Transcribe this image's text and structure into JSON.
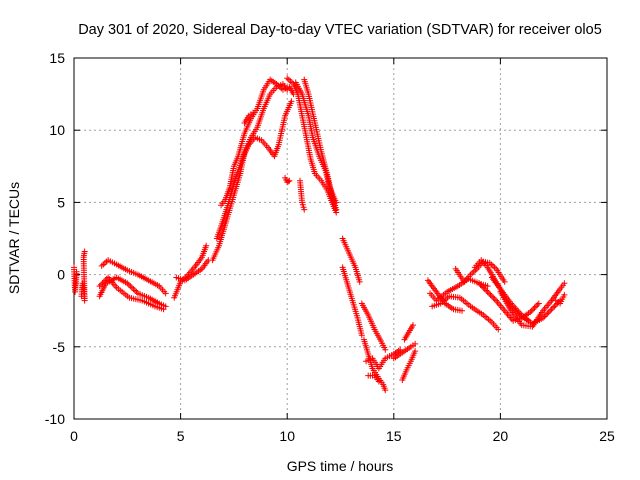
{
  "chart_data": {
    "type": "scatter",
    "title": "Day 301 of 2020, Sidereal Day-to-day VTEC variation (SDTVAR) for receiver olo5",
    "xlabel": "GPS time / hours",
    "ylabel": "SDTVAR / TECUs",
    "xlim": [
      0,
      25
    ],
    "ylim": [
      -10,
      15
    ],
    "xticks": [
      0,
      5,
      10,
      15,
      20,
      25
    ],
    "yticks": [
      -10,
      -5,
      0,
      5,
      10,
      15
    ],
    "grid": true,
    "marker": "+",
    "series": [
      {
        "name": "SDTVAR",
        "color": "#ff0000",
        "tracks": [
          [
            [
              0.0,
              0.5
            ],
            [
              0.05,
              -1.2
            ],
            [
              0.1,
              -0.5
            ],
            [
              0.12,
              0.2
            ]
          ],
          [
            [
              0.35,
              -1.5
            ],
            [
              0.4,
              -0.6
            ],
            [
              0.45,
              -1.0
            ],
            [
              0.5,
              -1.8
            ],
            [
              0.45,
              1.2
            ],
            [
              0.5,
              1.6
            ]
          ],
          [
            [
              1.2,
              -1.5
            ],
            [
              1.5,
              -0.6
            ],
            [
              2.0,
              -0.2
            ],
            [
              2.5,
              -0.6
            ],
            [
              3.0,
              -1.3
            ],
            [
              3.5,
              -1.6
            ],
            [
              4.0,
              -2.0
            ],
            [
              4.3,
              -2.2
            ]
          ],
          [
            [
              1.3,
              0.6
            ],
            [
              1.6,
              1.0
            ],
            [
              2.0,
              0.7
            ],
            [
              2.5,
              0.3
            ],
            [
              3.0,
              0.0
            ],
            [
              3.5,
              -0.4
            ],
            [
              4.0,
              -0.8
            ],
            [
              4.3,
              -1.3
            ]
          ],
          [
            [
              1.2,
              -0.8
            ],
            [
              1.6,
              -0.2
            ],
            [
              2.0,
              -0.9
            ],
            [
              2.6,
              -1.6
            ],
            [
              3.2,
              -1.8
            ],
            [
              3.8,
              -2.2
            ],
            [
              4.2,
              -2.4
            ]
          ],
          [
            [
              4.7,
              -1.6
            ],
            [
              5.0,
              -0.5
            ],
            [
              5.3,
              -0.1
            ],
            [
              5.7,
              0.6
            ],
            [
              6.0,
              1.2
            ],
            [
              6.2,
              2.0
            ]
          ],
          [
            [
              4.8,
              -0.2
            ],
            [
              5.2,
              -0.4
            ],
            [
              5.6,
              0.0
            ],
            [
              6.0,
              0.4
            ],
            [
              6.3,
              1.0
            ]
          ],
          [
            [
              6.5,
              1.0
            ],
            [
              6.8,
              2.0
            ],
            [
              7.0,
              3.0
            ],
            [
              7.2,
              4.0
            ],
            [
              7.5,
              5.5
            ],
            [
              7.8,
              7.0
            ],
            [
              8.0,
              8.5
            ],
            [
              8.3,
              9.5
            ],
            [
              8.6,
              10.2
            ],
            [
              8.9,
              11.5
            ],
            [
              9.2,
              12.5
            ],
            [
              9.5,
              13.0
            ],
            [
              9.8,
              13.2
            ],
            [
              10.0,
              12.8
            ]
          ],
          [
            [
              6.7,
              2.5
            ],
            [
              7.0,
              3.8
            ],
            [
              7.3,
              5.2
            ],
            [
              7.6,
              6.8
            ],
            [
              7.9,
              8.0
            ],
            [
              8.2,
              9.0
            ],
            [
              8.5,
              9.5
            ],
            [
              8.8,
              9.3
            ],
            [
              9.1,
              8.8
            ],
            [
              9.4,
              8.2
            ],
            [
              9.6,
              9.0
            ],
            [
              9.9,
              11.0
            ],
            [
              10.2,
              12.0
            ]
          ],
          [
            [
              6.9,
              4.8
            ],
            [
              7.1,
              5.2
            ],
            [
              7.3,
              6.0
            ],
            [
              7.5,
              7.5
            ],
            [
              7.7,
              8.2
            ],
            [
              8.0,
              9.8
            ],
            [
              8.3,
              10.8
            ],
            [
              8.6,
              11.5
            ],
            [
              8.9,
              12.8
            ],
            [
              9.2,
              13.5
            ],
            [
              9.5,
              13.2
            ],
            [
              9.8,
              12.8
            ],
            [
              10.1,
              13.0
            ],
            [
              10.3,
              12.5
            ]
          ],
          [
            [
              8.0,
              10.5
            ],
            [
              8.2,
              11.0
            ],
            [
              8.4,
              11.2
            ]
          ],
          [
            [
              9.9,
              6.7
            ],
            [
              10.0,
              6.4
            ],
            [
              10.1,
              6.5
            ]
          ],
          [
            [
              10.0,
              13.6
            ],
            [
              10.3,
              13.2
            ],
            [
              10.5,
              12.5
            ],
            [
              10.7,
              11.0
            ],
            [
              10.9,
              9.5
            ],
            [
              11.1,
              8.0
            ],
            [
              11.3,
              7.0
            ],
            [
              11.6,
              6.5
            ],
            [
              11.9,
              5.8
            ],
            [
              12.1,
              5.0
            ],
            [
              12.3,
              4.3
            ]
          ],
          [
            [
              10.4,
              13.3
            ],
            [
              10.7,
              12.5
            ],
            [
              11.0,
              11.0
            ],
            [
              11.2,
              9.5
            ],
            [
              11.5,
              8.2
            ],
            [
              11.8,
              7.2
            ],
            [
              12.0,
              6.0
            ],
            [
              12.3,
              5.0
            ]
          ],
          [
            [
              10.8,
              13.5
            ],
            [
              11.0,
              12.5
            ],
            [
              11.3,
              10.5
            ],
            [
              11.6,
              8.5
            ],
            [
              11.9,
              6.8
            ],
            [
              12.1,
              5.5
            ],
            [
              12.3,
              4.5
            ]
          ],
          [
            [
              10.6,
              6.5
            ],
            [
              10.7,
              5.0
            ],
            [
              10.8,
              4.5
            ]
          ],
          [
            [
              12.6,
              2.5
            ],
            [
              12.9,
              1.5
            ],
            [
              13.2,
              0.5
            ],
            [
              13.4,
              -0.5
            ]
          ],
          [
            [
              12.6,
              0.5
            ],
            [
              12.8,
              -0.5
            ],
            [
              13.0,
              -1.5
            ],
            [
              13.3,
              -3.0
            ],
            [
              13.5,
              -4.2
            ]
          ],
          [
            [
              13.5,
              -2.0
            ],
            [
              13.8,
              -2.8
            ],
            [
              14.1,
              -3.8
            ],
            [
              14.4,
              -4.6
            ],
            [
              14.6,
              -5.2
            ]
          ],
          [
            [
              13.6,
              -4.5
            ],
            [
              13.8,
              -5.5
            ],
            [
              14.0,
              -6.5
            ],
            [
              14.3,
              -7.2
            ],
            [
              14.5,
              -7.6
            ],
            [
              14.6,
              -8.0
            ]
          ],
          [
            [
              13.7,
              -6.0
            ],
            [
              14.0,
              -5.8
            ],
            [
              14.3,
              -6.5
            ],
            [
              14.6,
              -5.8
            ],
            [
              15.0,
              -5.5
            ],
            [
              15.3,
              -5.2
            ]
          ],
          [
            [
              13.8,
              -7.0
            ],
            [
              14.1,
              -7.0
            ],
            [
              14.3,
              -7.4
            ]
          ],
          [
            [
              15.0,
              -5.8
            ],
            [
              15.4,
              -5.4
            ],
            [
              15.8,
              -5.0
            ],
            [
              16.0,
              -4.8
            ]
          ],
          [
            [
              15.5,
              -4.5
            ],
            [
              15.7,
              -4.0
            ],
            [
              15.9,
              -3.5
            ]
          ],
          [
            [
              15.4,
              -7.3
            ],
            [
              15.6,
              -6.6
            ],
            [
              15.8,
              -6.0
            ],
            [
              16.0,
              -5.3
            ]
          ],
          [
            [
              16.6,
              -0.4
            ],
            [
              17.0,
              -1.2
            ],
            [
              17.4,
              -2.0
            ],
            [
              17.8,
              -2.4
            ],
            [
              18.2,
              -2.5
            ]
          ],
          [
            [
              16.7,
              -1.3
            ],
            [
              17.0,
              -1.8
            ],
            [
              17.5,
              -1.2
            ],
            [
              18.0,
              -0.8
            ],
            [
              18.5,
              -0.3
            ],
            [
              19.0,
              -0.6
            ],
            [
              19.4,
              -0.8
            ]
          ],
          [
            [
              16.8,
              -2.2
            ],
            [
              17.2,
              -2.0
            ],
            [
              17.6,
              -1.5
            ],
            [
              18.1,
              -1.6
            ],
            [
              18.6,
              -2.2
            ],
            [
              19.2,
              -2.8
            ],
            [
              19.6,
              -3.3
            ],
            [
              19.9,
              -3.8
            ]
          ],
          [
            [
              17.9,
              0.4
            ],
            [
              18.3,
              -0.5
            ],
            [
              18.6,
              0.0
            ],
            [
              18.9,
              0.4
            ],
            [
              19.2,
              0.9
            ],
            [
              19.5,
              0.8
            ],
            [
              19.8,
              0.4
            ],
            [
              20.2,
              -0.5
            ]
          ],
          [
            [
              18.8,
              0.5
            ],
            [
              19.1,
              1.0
            ],
            [
              19.4,
              0.5
            ],
            [
              19.8,
              -0.5
            ],
            [
              20.2,
              -1.5
            ],
            [
              20.5,
              -2.2
            ],
            [
              20.9,
              -2.8
            ],
            [
              21.3,
              -3.2
            ]
          ],
          [
            [
              19.0,
              -0.6
            ],
            [
              19.4,
              -1.2
            ],
            [
              19.8,
              -1.8
            ],
            [
              20.2,
              -2.5
            ],
            [
              20.6,
              -3.2
            ],
            [
              21.0,
              -3.0
            ],
            [
              21.4,
              -2.6
            ],
            [
              21.8,
              -2.0
            ]
          ],
          [
            [
              19.6,
              -0.2
            ],
            [
              20.0,
              -1.0
            ],
            [
              20.5,
              -2.0
            ],
            [
              21.0,
              -2.8
            ],
            [
              21.5,
              -3.4
            ],
            [
              22.0,
              -3.0
            ],
            [
              22.4,
              -2.4
            ],
            [
              22.8,
              -1.8
            ]
          ],
          [
            [
              20.0,
              -1.2
            ],
            [
              20.5,
              -2.5
            ],
            [
              21.0,
              -3.5
            ],
            [
              21.5,
              -3.6
            ],
            [
              22.0,
              -2.5
            ],
            [
              22.4,
              -1.8
            ],
            [
              22.8,
              -1.0
            ],
            [
              23.0,
              -0.6
            ]
          ],
          [
            [
              22.6,
              -1.8
            ],
            [
              22.8,
              -2.0
            ],
            [
              22.9,
              -1.7
            ],
            [
              23.0,
              -1.4
            ]
          ]
        ]
      }
    ]
  }
}
